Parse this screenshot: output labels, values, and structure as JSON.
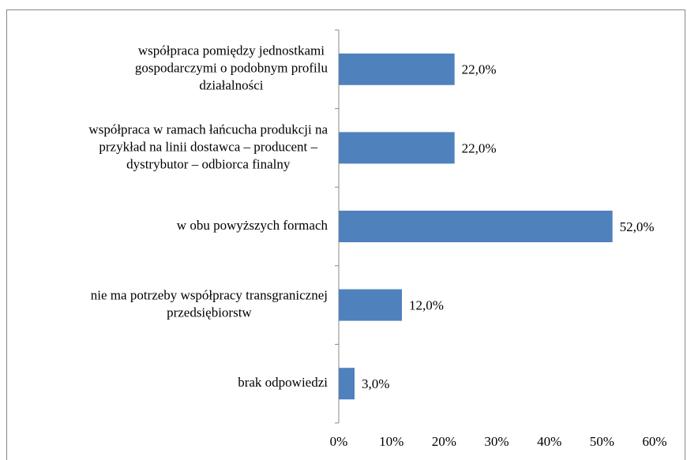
{
  "chart_data": {
    "type": "barh",
    "categories": [
      [
        "współpraca pomiędzy jednostkami",
        "gospodarczymi o podobnym profilu",
        "działalności"
      ],
      [
        "współpraca  w ramach łańcucha produkcji na",
        "przykład  na linii dostawca – producent –",
        "dystrybutor – odbiorca finalny"
      ],
      [
        "w obu powyższych formach"
      ],
      [
        "nie ma potrzeby współpracy transgranicznej",
        "przedsiębiorstw"
      ],
      [
        "brak odpowiedzi"
      ]
    ],
    "values": [
      22,
      22,
      52,
      12,
      3
    ],
    "value_labels": [
      "22,0%",
      "22,0%",
      "52,0%",
      "12,0%",
      "3,0%"
    ],
    "color": "#4f81bd",
    "xlim": [
      0,
      60
    ],
    "xticks": [
      {
        "value": 0,
        "label": "0%"
      },
      {
        "value": 10,
        "label": "10%"
      },
      {
        "value": 20,
        "label": "20%"
      },
      {
        "value": 30,
        "label": "30%"
      },
      {
        "value": 40,
        "label": "40%"
      },
      {
        "value": 50,
        "label": "50%"
      },
      {
        "value": 60,
        "label": "60%"
      }
    ],
    "grid": false
  }
}
